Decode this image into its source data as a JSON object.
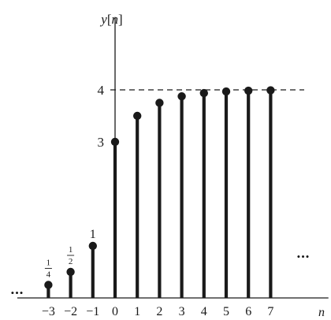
{
  "chart_data": {
    "type": "stem",
    "x": [
      -3,
      -2,
      -1,
      0,
      1,
      2,
      3,
      4,
      5,
      6,
      7
    ],
    "values": [
      0.25,
      0.5,
      1,
      3,
      3.5,
      3.75,
      3.875,
      3.9375,
      3.96875,
      3.984375,
      3.9921875
    ],
    "value_labels": [
      {
        "x": -3,
        "numerator": "1",
        "denominator": "4"
      },
      {
        "x": -2,
        "numerator": "1",
        "denominator": "2"
      },
      {
        "x": -1,
        "text": "1"
      }
    ],
    "x_tick_labels": [
      "−3",
      "−2",
      "−1",
      "0",
      "1",
      "2",
      "3",
      "4",
      "5",
      "6",
      "7"
    ],
    "y_tick_labels": [
      {
        "value": 3,
        "text": "3"
      },
      {
        "value": 4,
        "text": "4"
      }
    ],
    "asymptote": {
      "y": 4,
      "style": "dashed"
    },
    "ylabel_parts": [
      "y",
      "[",
      "n",
      "]"
    ],
    "xlabel": "n",
    "ellipsis_left": "•••",
    "ellipsis_right": "•••",
    "xlim": [
      -4.4,
      9.6
    ],
    "ylim": [
      0,
      5.4
    ],
    "color": "#1a1a1a"
  }
}
